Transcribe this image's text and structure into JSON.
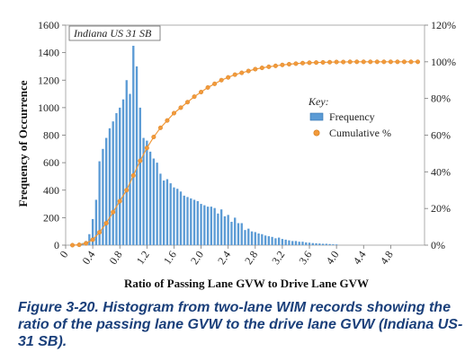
{
  "chart_data": {
    "type": "bar",
    "inset_label": "Indiana US 31 SB",
    "xlabel": "Ratio of Passing Lane GVW to Drive Lane GVW",
    "ylabel": "Frequency of Occurrence",
    "ylim": [
      0,
      1600
    ],
    "y2lim": [
      0,
      1.2
    ],
    "xlim": [
      0,
      5.3
    ],
    "y_ticks": [
      0,
      200,
      400,
      600,
      800,
      1000,
      1200,
      1400,
      1600
    ],
    "y2_ticks": [
      {
        "value": 0.0,
        "label": "0%"
      },
      {
        "value": 0.2,
        "label": "20%"
      },
      {
        "value": 0.4,
        "label": "40%"
      },
      {
        "value": 0.6,
        "label": "60%"
      },
      {
        "value": 0.8,
        "label": "80%"
      },
      {
        "value": 1.0,
        "label": "100%"
      },
      {
        "value": 1.2,
        "label": "120%"
      }
    ],
    "x_ticks": [
      {
        "value": 0,
        "label": "0"
      },
      {
        "value": 0.4,
        "label": "0.4"
      },
      {
        "value": 0.8,
        "label": "0.8"
      },
      {
        "value": 1.2,
        "label": "1.2"
      },
      {
        "value": 1.6,
        "label": "1.6"
      },
      {
        "value": 2.0,
        "label": "2.0"
      },
      {
        "value": 2.4,
        "label": "2.4"
      },
      {
        "value": 2.8,
        "label": "2.8"
      },
      {
        "value": 3.2,
        "label": "3.2"
      },
      {
        "value": 3.6,
        "label": "3.6"
      },
      {
        "value": 4.0,
        "label": "4.0"
      },
      {
        "value": 4.4,
        "label": "4.4"
      },
      {
        "value": 4.8,
        "label": "4.8"
      }
    ],
    "legend": {
      "title": "Key:",
      "position": "right",
      "items": [
        "Frequency",
        "Cumulative %"
      ]
    },
    "series": [
      {
        "name": "Frequency",
        "kind": "bar",
        "color": "#5b9bd5",
        "x": [
          0.2,
          0.25,
          0.3,
          0.35,
          0.4,
          0.45,
          0.5,
          0.55,
          0.6,
          0.65,
          0.7,
          0.75,
          0.8,
          0.85,
          0.9,
          0.95,
          1.0,
          1.05,
          1.1,
          1.15,
          1.2,
          1.25,
          1.3,
          1.35,
          1.4,
          1.45,
          1.5,
          1.55,
          1.6,
          1.65,
          1.7,
          1.75,
          1.8,
          1.85,
          1.9,
          1.95,
          2.0,
          2.05,
          2.1,
          2.15,
          2.2,
          2.25,
          2.3,
          2.35,
          2.4,
          2.45,
          2.5,
          2.55,
          2.6,
          2.65,
          2.7,
          2.75,
          2.8,
          2.85,
          2.9,
          2.95,
          3.0,
          3.05,
          3.1,
          3.15,
          3.2,
          3.25,
          3.3,
          3.35,
          3.4,
          3.45,
          3.5,
          3.55,
          3.6,
          3.65,
          3.7,
          3.75,
          3.8,
          3.85,
          3.9,
          3.95,
          4.0
        ],
        "values": [
          10,
          15,
          30,
          80,
          190,
          330,
          610,
          700,
          780,
          850,
          900,
          960,
          1000,
          1060,
          1200,
          1100,
          1450,
          1300,
          1000,
          780,
          760,
          680,
          630,
          600,
          520,
          470,
          480,
          450,
          420,
          410,
          390,
          360,
          350,
          340,
          330,
          320,
          300,
          290,
          280,
          280,
          270,
          230,
          260,
          210,
          220,
          170,
          200,
          160,
          160,
          110,
          120,
          100,
          95,
          85,
          80,
          70,
          65,
          60,
          50,
          55,
          45,
          40,
          35,
          30,
          30,
          25,
          25,
          20,
          18,
          15,
          14,
          12,
          10,
          10,
          8,
          6,
          5
        ]
      },
      {
        "name": "Cumulative %",
        "kind": "line",
        "color": "#f29a3b",
        "x": [
          0.1,
          0.2,
          0.3,
          0.4,
          0.5,
          0.6,
          0.7,
          0.8,
          0.9,
          1.0,
          1.1,
          1.2,
          1.3,
          1.4,
          1.5,
          1.6,
          1.7,
          1.8,
          1.9,
          2.0,
          2.1,
          2.2,
          2.3,
          2.4,
          2.5,
          2.6,
          2.7,
          2.8,
          2.9,
          3.0,
          3.1,
          3.2,
          3.3,
          3.4,
          3.5,
          3.6,
          3.7,
          3.8,
          3.9,
          4.0,
          4.1,
          4.2,
          4.3,
          4.4,
          4.5,
          4.6,
          4.7,
          4.8,
          4.9,
          5.0,
          5.1,
          5.2
        ],
        "values": [
          0.0,
          0.002,
          0.01,
          0.03,
          0.07,
          0.12,
          0.18,
          0.24,
          0.3,
          0.38,
          0.46,
          0.53,
          0.59,
          0.64,
          0.68,
          0.72,
          0.75,
          0.78,
          0.81,
          0.835,
          0.86,
          0.88,
          0.9,
          0.915,
          0.93,
          0.94,
          0.95,
          0.96,
          0.967,
          0.973,
          0.978,
          0.983,
          0.987,
          0.99,
          0.993,
          0.995,
          0.996,
          0.997,
          0.998,
          0.999,
          0.999,
          1.0,
          1.0,
          1.0,
          1.0,
          1.0,
          1.0,
          1.0,
          1.0,
          1.0,
          1.0,
          1.0
        ]
      }
    ]
  },
  "caption": {
    "figure_number": "Figure 3-20.",
    "text": "Histogram from two-lane WIM records showing the ratio of the passing lane GVW to the drive lane GVW (Indiana US-31 SB)."
  }
}
